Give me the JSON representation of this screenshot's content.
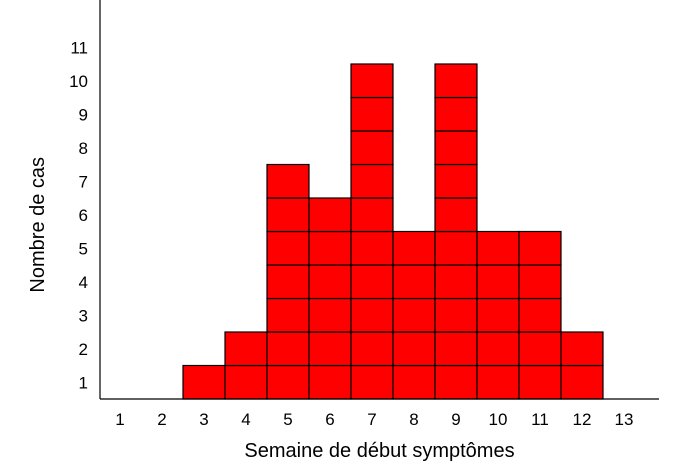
{
  "chart_data": {
    "type": "bar",
    "style": "epidemic-curve (stacked unit squares, one square per case)",
    "title": "",
    "xlabel": "Semaine de début symptômes",
    "ylabel": "Nombre de cas",
    "categories": [
      "1",
      "2",
      "3",
      "4",
      "5",
      "6",
      "7",
      "8",
      "9",
      "10",
      "11",
      "12",
      "13"
    ],
    "values": [
      0,
      0,
      1,
      2,
      7,
      6,
      10,
      5,
      10,
      5,
      5,
      2,
      0
    ],
    "y_ticks": [
      "1",
      "2",
      "3",
      "4",
      "5",
      "6",
      "7",
      "8",
      "9",
      "10",
      "11"
    ],
    "ylim": [
      0,
      11
    ],
    "grid": false,
    "legend": "none",
    "colors": {
      "fill": "#ff0000",
      "outline": "#000000",
      "axis": "#000000"
    }
  }
}
